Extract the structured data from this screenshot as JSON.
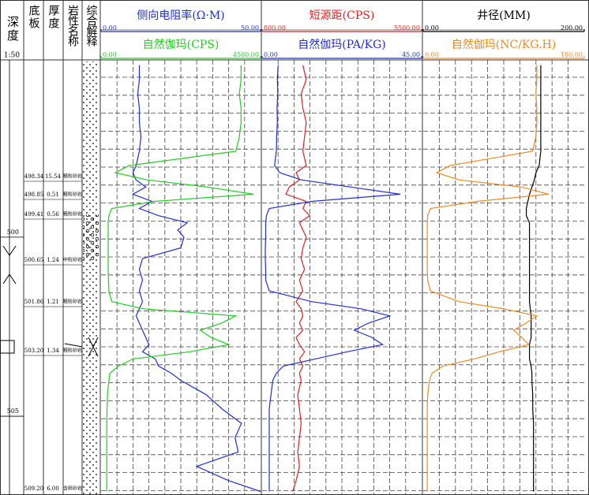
{
  "chart_data": {
    "type": "well_log",
    "depth_label": "深度",
    "scale": "1:50",
    "columns": [
      "底板",
      "厚度",
      "岩性名称",
      "综合解释"
    ],
    "ylim": [
      495.05,
      507.2
    ],
    "yticks": [
      500,
      505
    ],
    "depths": [
      495.2,
      495.6,
      496.0,
      496.4,
      496.8,
      497.2,
      497.6,
      498.0,
      498.2,
      498.4,
      498.6,
      498.8,
      499.0,
      499.2,
      499.4,
      499.6,
      499.8,
      500.0,
      500.3,
      500.6,
      500.9,
      501.2,
      501.5,
      501.8,
      502.0,
      502.2,
      502.4,
      502.6,
      502.8,
      503.0,
      503.2,
      503.4,
      503.6,
      503.8,
      504.0,
      504.4,
      504.8,
      505.2,
      505.6,
      506.0,
      506.4,
      506.8,
      507.1
    ],
    "layers": [
      {
        "bottom": "498.34",
        "thickness": "15.54",
        "lithology": "粗粒砂岩"
      },
      {
        "bottom": "498.85",
        "thickness": "0.51",
        "lithology": "粗粒砂岩"
      },
      {
        "bottom": "499.41",
        "thickness": "0.56",
        "lithology": "粗粒砂岩"
      },
      {
        "bottom": "500.65",
        "thickness": "1.24",
        "lithology": "中粒砂岩"
      },
      {
        "bottom": "501.86",
        "thickness": "1.21",
        "lithology": "粗粒砂岩"
      },
      {
        "bottom": "503.20",
        "thickness": "1.34",
        "lithology": "粗粒砂岩"
      },
      {
        "bottom": "509.20",
        "thickness": "6.00",
        "lithology": "含砾砂岩"
      }
    ],
    "tracks": [
      {
        "curves": [
          {
            "name": "侧向电阻率(Ω·M)",
            "color": "#1f2fd0",
            "xlim": [
              0,
              50
            ],
            "xticks": [
              {
                "value": 0,
                "label": "0.00"
              },
              {
                "value": 50,
                "label": "50.00"
              }
            ],
            "values": [
              12,
              12,
              11.5,
              12,
              12,
              12.5,
              12,
              11,
              10,
              11,
              14,
              10,
              16,
              12,
              18,
              27,
              24,
              26,
              25,
              13,
              12,
              13,
              12,
              13,
              12,
              11,
              12,
              13,
              14,
              15,
              13,
              17,
              18,
              22,
              25,
              33,
              38,
              44,
              42,
              43,
              30,
              40,
              50
            ]
          },
          {
            "name": "自然伽玛(CPS)",
            "color": "#22cc22",
            "xlim": [
              0,
              4500
            ],
            "xticks": [
              {
                "value": 0,
                "label": "0.00"
              },
              {
                "value": 4500,
                "label": "4500.00"
              }
            ],
            "values": [
              3950,
              3950,
              3900,
              3950,
              3950,
              3900,
              3800,
              800,
              400,
              1300,
              3000,
              4300,
              1500,
              300,
              220,
              200,
              200,
              200,
              200,
              200,
              200,
              210,
              220,
              300,
              1200,
              3800,
              3400,
              2800,
              3100,
              3600,
              2500,
              900,
              500,
              250,
              220,
              180,
              170,
              160,
              160,
              160,
              160,
              160,
              160
            ]
          }
        ]
      },
      {
        "curves": [
          {
            "name": "短源距(CPS)",
            "color": "#e02020",
            "xlim": [
              800,
              5500
            ],
            "xticks": [
              {
                "value": 800,
                "label": "800.00"
              },
              {
                "value": 5500,
                "label": "5500.00"
              }
            ],
            "values": [
              2000,
              2100,
              1950,
              2000,
              2100,
              2050,
              2000,
              2100,
              1800,
              1900,
              1600,
              1500,
              2100,
              2000,
              2200,
              1900,
              2000,
              2100,
              2000,
              1950,
              2050,
              1900,
              2000,
              1800,
              1950,
              2000,
              1900,
              2000,
              1800,
              1900,
              2050,
              1900,
              2000,
              1900,
              1950,
              1850,
              1900,
              1950,
              1900,
              1850,
              1900,
              1800,
              1700
            ]
          },
          {
            "name": "自然伽玛(PA/KG)",
            "color": "#1f2fd0",
            "xlim": [
              0,
              45
            ],
            "xticks": [
              {
                "value": 0,
                "label": "0.00"
              },
              {
                "value": 45,
                "label": "45.00"
              }
            ],
            "values": [
              4.5,
              4.3,
              4.4,
              4.2,
              4.3,
              4.1,
              4.0,
              3.5,
              5,
              11,
              25,
              39,
              14,
              2,
              1.2,
              1,
              1,
              1,
              0.9,
              0.9,
              1,
              1,
              2,
              14,
              28,
              36,
              30,
              26,
              31,
              34,
              24,
              15,
              6,
              4,
              3,
              2.5,
              2,
              2,
              2,
              2,
              2,
              2,
              2
            ]
          }
        ]
      },
      {
        "curves": [
          {
            "name": "井径(MM)",
            "color": "#000000",
            "xlim": [
              0,
              200
            ],
            "xticks": [
              {
                "value": 0,
                "label": "0.00"
              },
              {
                "value": 200,
                "label": "200.00"
              }
            ],
            "values": [
              146,
              146,
              146,
              146,
              146,
              146,
              146,
              144,
              140,
              138,
              135,
              132,
              130,
              128,
              128,
              132,
              132,
              132,
              132,
              132,
              132,
              132,
              132,
              132,
              133,
              134,
              134,
              134,
              134,
              132,
              132,
              132,
              134,
              135,
              135,
              136,
              136,
              137,
              137,
              137,
              137,
              137,
              137
            ]
          },
          {
            "name": "自然伽玛(NC/KG.H)",
            "color": "#f08a20",
            "xlim": [
              0,
              180
            ],
            "xticks": [
              {
                "value": 0,
                "label": "0.00"
              },
              {
                "value": 180,
                "label": "180.00"
              }
            ],
            "values": [
              127,
              127,
              126,
              127,
              127,
              126,
              122,
              30,
              15,
              40,
              110,
              140,
              60,
              8,
              5,
              4.5,
              4.5,
              4.5,
              4.5,
              4.5,
              4.5,
              5,
              8,
              40,
              90,
              127,
              115,
              101,
              110,
              118,
              85,
              57,
              22,
              10,
              7,
              5,
              4.5,
              4.5,
              4.5,
              4.5,
              4.5,
              4.5,
              4.5
            ]
          }
        ]
      }
    ]
  }
}
